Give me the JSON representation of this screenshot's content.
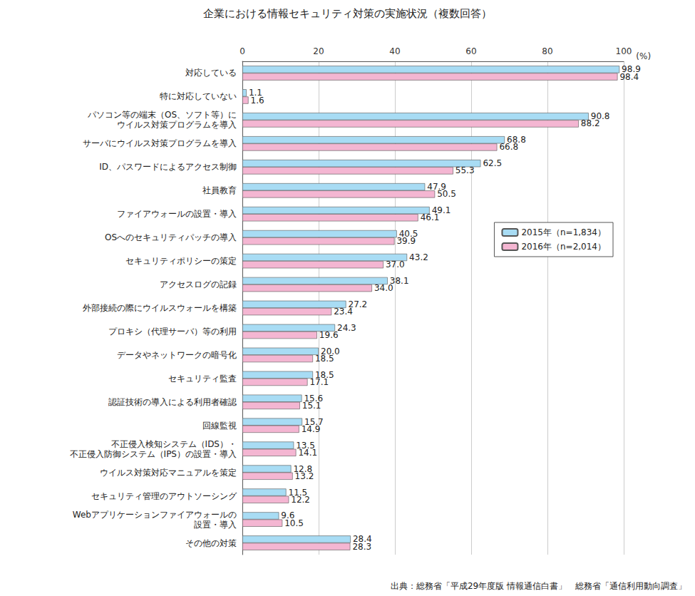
{
  "chart_data": {
    "type": "bar",
    "title": "企業における情報セキュリティ対策の実施状況（複数回答）",
    "source": "出典：総務省「平成29年度版 情報通信白書」　総務省「通信利用動向調査」",
    "xlabel": "(%)",
    "orientation": "horizontal",
    "categories": [
      "対応している",
      "特に対応していない",
      "パソコン等の端末（OS、ソフト等）に\nウイルス対策プログラムを導入",
      "サーバにウイルス対策プログラムを導入",
      "ID、パスワードによるアクセス制御",
      "社員教育",
      "ファイアウォールの設置・導入",
      "OSへのセキュリティパッチの導入",
      "セキュリティポリシーの策定",
      "アクセスログの記録",
      "外部接続の際にウイルスウォールを構築",
      "プロキシ（代理サーバ）等の利用",
      "データやネットワークの暗号化",
      "セキュリティ監査",
      "認証技術の導入による利用者確認",
      "回線監視",
      "不正侵入検知システム（IDS）・\n不正侵入防御システム（IPS）の設置・導入",
      "ウイルス対策対応マニュアルを策定",
      "セキュリティ管理のアウトソーシング",
      "Webアプリケーションファイアウォールの\n設置・導入",
      "その他の対策"
    ],
    "series": [
      {
        "name": "2015年（n=1,834）",
        "color": "#a8dcf4",
        "values": [
          98.9,
          1.1,
          90.8,
          68.8,
          62.5,
          47.9,
          49.1,
          40.5,
          43.2,
          38.1,
          27.2,
          24.3,
          20.0,
          18.5,
          15.6,
          15.7,
          13.5,
          12.8,
          11.5,
          9.6,
          28.4
        ],
        "value_labels": [
          "98.9",
          "1.1",
          "90.8",
          "68.8",
          "62.5",
          "47.9",
          "49.1",
          "40.5",
          "43.2",
          "38.1",
          "27.2",
          "24.3",
          "20.0",
          "18.5",
          "15.6",
          "15.7",
          "13.5",
          "12.8",
          "11.5",
          "9.6",
          "28.4"
        ]
      },
      {
        "name": "2016年（n=2,014）",
        "color": "#f4b6d2",
        "values": [
          98.4,
          1.6,
          88.2,
          66.8,
          55.3,
          50.5,
          46.1,
          39.9,
          37.0,
          34.0,
          23.4,
          19.6,
          18.5,
          17.1,
          15.1,
          14.9,
          14.1,
          13.2,
          12.2,
          10.5,
          28.3
        ],
        "value_labels": [
          "98.4",
          "1.6",
          "88.2",
          "66.8",
          "55.3",
          "50.5",
          "46.1",
          "39.9",
          "37.0",
          "34.0",
          "23.4",
          "19.6",
          "18.5",
          "17.1",
          "15.1",
          "14.9",
          "14.1",
          "13.2",
          "12.2",
          "10.5",
          "28.3"
        ]
      }
    ],
    "xlim": [
      0,
      100
    ],
    "xticks": [
      0,
      20,
      40,
      60,
      80,
      100
    ],
    "grid": true,
    "legend": "right",
    "data_labels": true
  }
}
